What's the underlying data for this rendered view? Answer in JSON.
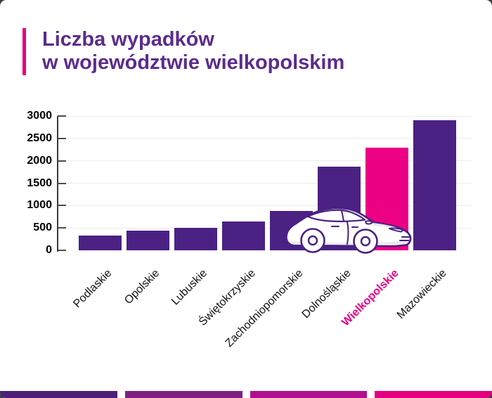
{
  "title": {
    "line1": "Liczba wypadków",
    "line2": "w województwie wielkopolskim",
    "color": "#5b2b8e",
    "accent_color": "#e6007e"
  },
  "chart_data": {
    "type": "bar",
    "title": "Liczba wypadków w województwie wielkopolskim",
    "categories": [
      "Podlaskie",
      "Opolskie",
      "Lubuskie",
      "Świętokrzyskie",
      "Zachodniopomorskie",
      "Dolnośląskie",
      "Wielkopolskie",
      "Mazowieckie"
    ],
    "values": [
      330,
      440,
      500,
      650,
      880,
      1870,
      2300,
      2900
    ],
    "highlight_category": "Wielkopolskie",
    "bar_color": "#4b2183",
    "highlight_color": "#ec0084",
    "xlabel": "",
    "ylabel": "",
    "ylim": [
      0,
      3000
    ],
    "ytick_step": 500,
    "yticks": [
      "0",
      "500",
      "1000",
      "1500",
      "2000",
      "2500",
      "3000"
    ],
    "grid": true,
    "legend": false
  },
  "car_illustration": {
    "body_color": "#ffffff",
    "outline_color": "#4b2183",
    "shade_color": "#e9e9f0"
  },
  "footer": {
    "segment_colors": [
      "#4a2177",
      "#7d2184",
      "#b01090",
      "#e6007e"
    ]
  }
}
